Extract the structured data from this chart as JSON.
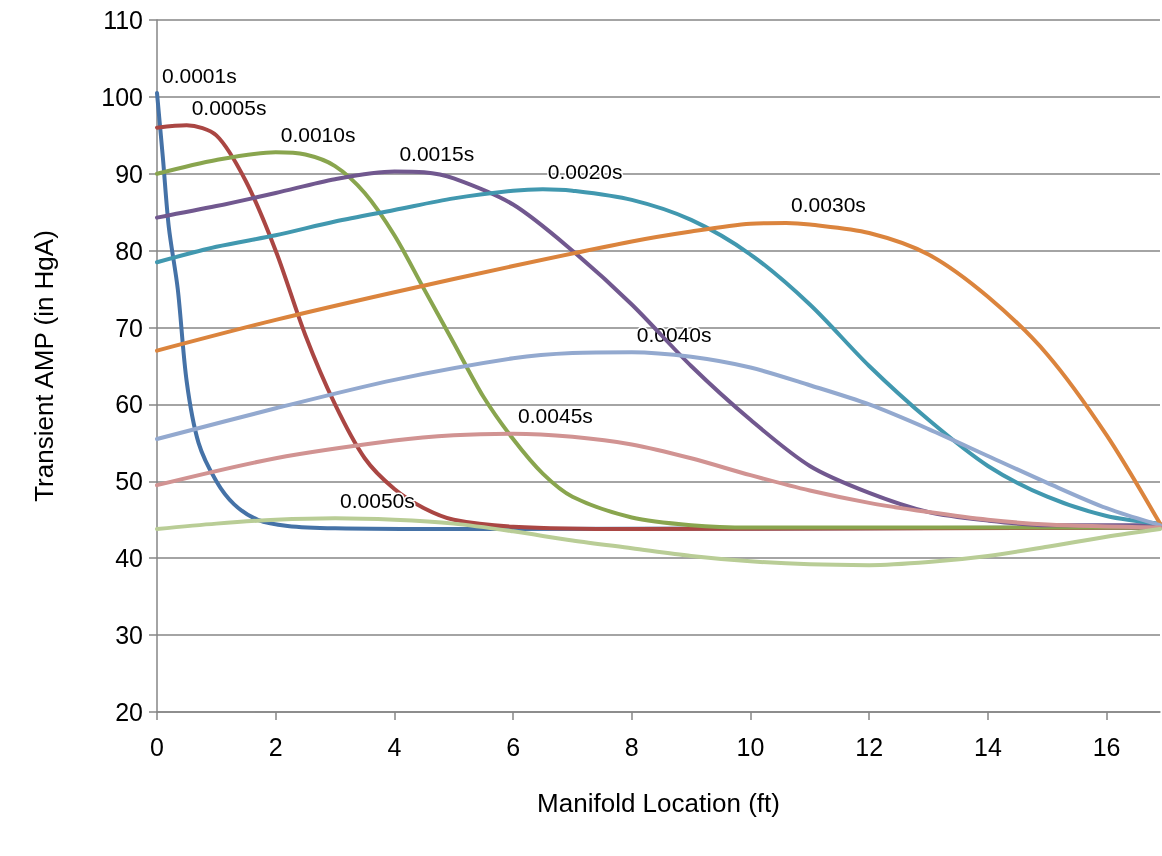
{
  "chart_data": {
    "type": "line",
    "xlabel": "Manifold Location (ft)",
    "ylabel": "Transient AMP (in HgA)",
    "xlim": [
      0,
      16.9
    ],
    "xticks": [
      0,
      2,
      4,
      6,
      8,
      10,
      12,
      14,
      16
    ],
    "ylim": [
      20,
      110
    ],
    "yticks": [
      20,
      30,
      40,
      50,
      60,
      70,
      80,
      90,
      100,
      110
    ],
    "grid": "y",
    "marker": "none",
    "line_style": "solid",
    "series": [
      {
        "name": "0.0001s",
        "color": "#4572a7",
        "x": [
          0,
          0.1,
          0.2,
          0.35,
          0.5,
          0.7,
          1,
          1.3,
          1.7,
          2.2,
          3,
          5,
          16.9
        ],
        "values": [
          100.5,
          92,
          83,
          75,
          63,
          55,
          50,
          47,
          45,
          44.2,
          43.9,
          43.8,
          44
        ]
      },
      {
        "name": "0.0005s",
        "color": "#aa4643",
        "x": [
          0,
          0.5,
          1,
          1.5,
          2,
          2.5,
          3,
          3.5,
          4,
          4.5,
          5,
          6,
          8,
          16.9
        ],
        "values": [
          96,
          96.3,
          95,
          89,
          80,
          69,
          60,
          53,
          49,
          46.5,
          45,
          44.1,
          43.8,
          44
        ]
      },
      {
        "name": "0.0010s",
        "color": "#89a54e",
        "x": [
          0,
          1,
          2,
          2.5,
          3,
          3.5,
          4,
          4.5,
          5,
          5.5,
          6,
          6.5,
          7,
          8,
          9,
          10,
          16.9
        ],
        "values": [
          90,
          91.8,
          92.8,
          92.5,
          91,
          87.5,
          82,
          75,
          68,
          61,
          55.5,
          51,
          48,
          45.3,
          44.3,
          44,
          44
        ]
      },
      {
        "name": "0.0015s",
        "color": "#71588f",
        "x": [
          0,
          1,
          2,
          3,
          4,
          4.5,
          5,
          6,
          7,
          8,
          9,
          10,
          11,
          12,
          13,
          14,
          15,
          16.9
        ],
        "values": [
          84.3,
          85.8,
          87.5,
          89.3,
          90.3,
          90.2,
          89.4,
          86,
          80,
          73,
          65,
          58,
          52,
          48.5,
          46,
          44.9,
          44.3,
          44.3
        ]
      },
      {
        "name": "0.0020s",
        "color": "#4198af",
        "x": [
          0,
          1,
          2,
          3,
          4,
          5,
          6,
          6.5,
          7,
          8,
          9,
          10,
          11,
          12,
          13,
          14,
          15,
          16,
          16.9
        ],
        "values": [
          78.5,
          80.5,
          82,
          83.8,
          85.3,
          86.8,
          87.8,
          88,
          87.8,
          86.6,
          84,
          79.5,
          73,
          65,
          58,
          52,
          48,
          45.5,
          44.5
        ]
      },
      {
        "name": "0.0030s",
        "color": "#db843d",
        "x": [
          0,
          2,
          4,
          6,
          8,
          9,
          10,
          10.6,
          11,
          12,
          13,
          14,
          15,
          16,
          16.9
        ],
        "values": [
          67,
          71,
          74.6,
          78,
          81.2,
          82.5,
          83.5,
          83.6,
          83.4,
          82.3,
          79.5,
          74,
          66.5,
          56,
          44.5
        ]
      },
      {
        "name": "0.0040s",
        "color": "#93a9cf",
        "x": [
          0,
          2,
          4,
          6,
          7,
          8,
          9,
          10,
          11,
          12,
          13,
          14,
          15,
          16,
          16.9
        ],
        "values": [
          55.5,
          59.5,
          63.2,
          66,
          66.7,
          66.8,
          66.2,
          64.8,
          62.5,
          60,
          56.8,
          53.3,
          49.8,
          46.5,
          44.3
        ]
      },
      {
        "name": "0.0045s",
        "color": "#d19392",
        "x": [
          0,
          2,
          4,
          5,
          6,
          7,
          8,
          9,
          10,
          11,
          12,
          13,
          14,
          15,
          16.9
        ],
        "values": [
          49.5,
          53,
          55.3,
          56,
          56.2,
          55.8,
          54.8,
          53,
          50.8,
          48.8,
          47.2,
          46,
          45,
          44.4,
          44
        ]
      },
      {
        "name": "0.0050s",
        "color": "#b9cd96",
        "x": [
          0,
          1,
          2,
          3,
          4,
          5,
          6,
          7,
          8,
          9,
          10,
          11,
          12,
          13,
          14,
          15,
          16,
          16.9
        ],
        "values": [
          43.8,
          44.5,
          45,
          45.2,
          45,
          44.5,
          43.5,
          42.3,
          41.3,
          40.3,
          39.6,
          39.2,
          39.1,
          39.5,
          40.3,
          41.5,
          42.8,
          43.8
        ]
      }
    ]
  }
}
